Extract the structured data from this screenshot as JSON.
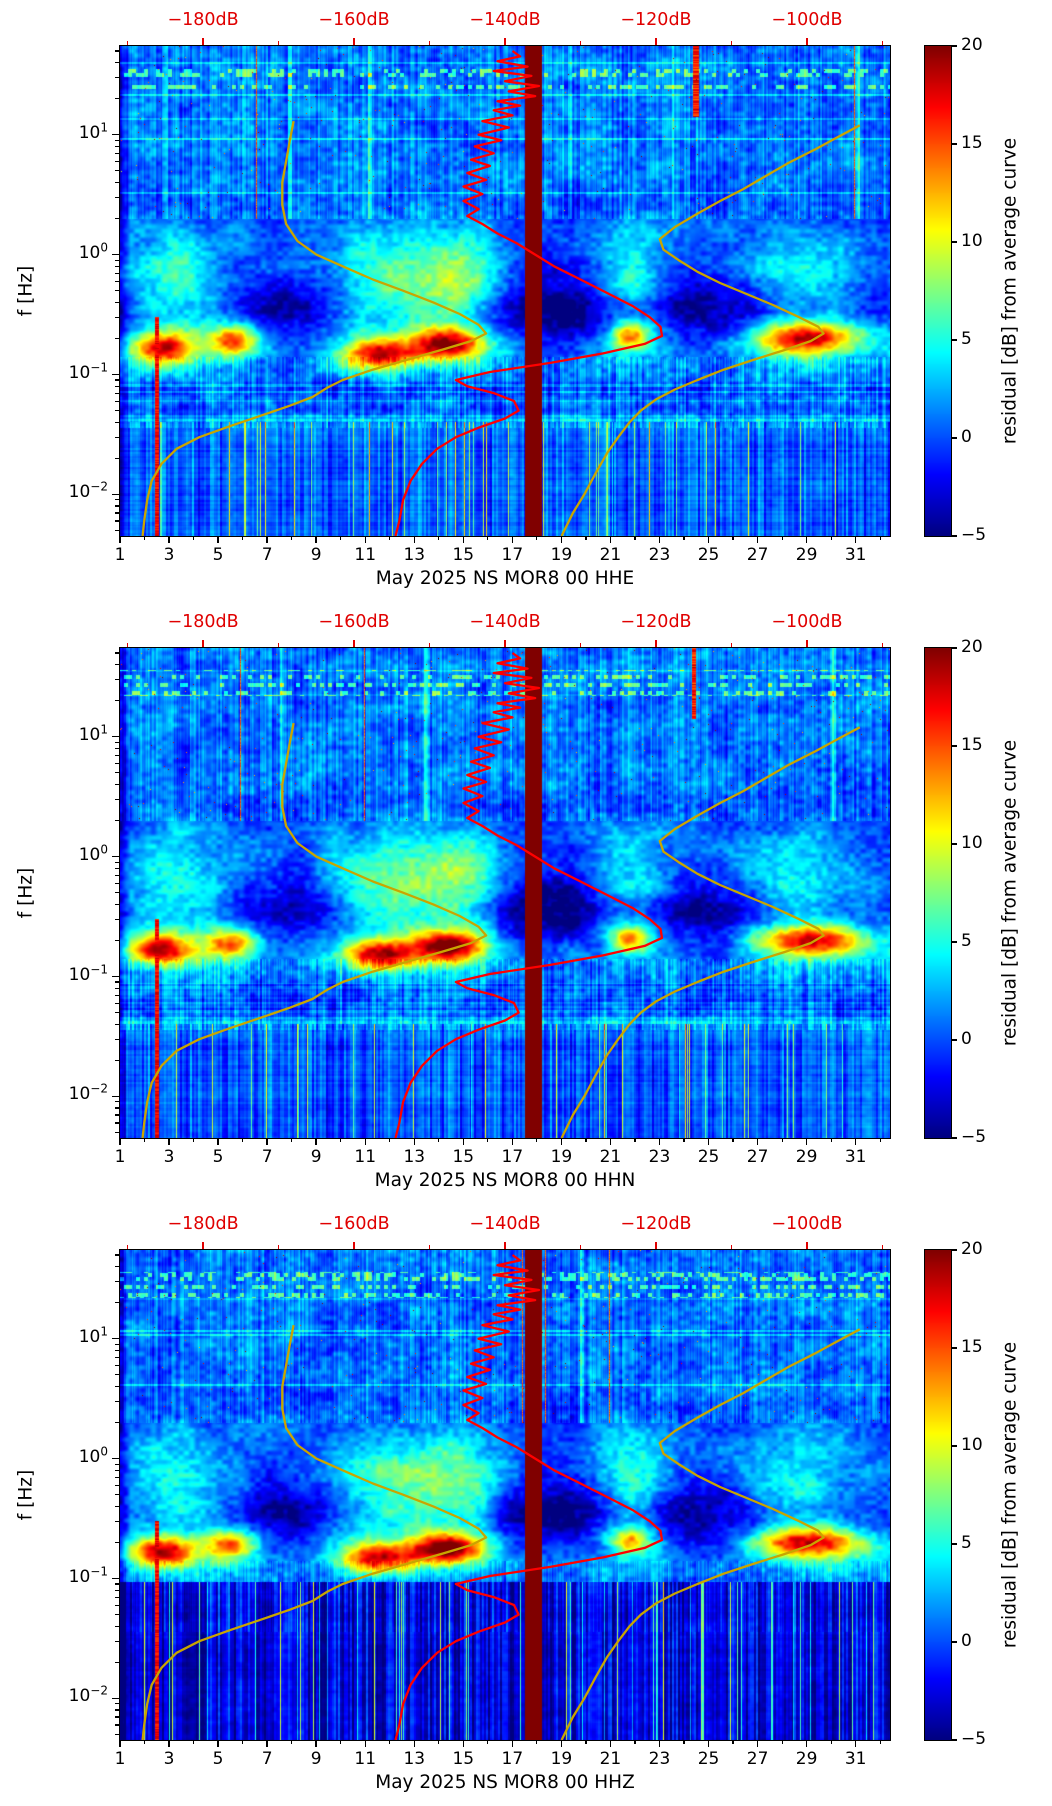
{
  "page": {
    "background": "#ffffff"
  },
  "axes": {
    "ylabel": "f [Hz]",
    "y_scale": "log",
    "f_min_hz": 0.0045,
    "f_max_hz": 55,
    "y_tick_base": "10",
    "y_tick_exponents": [
      1,
      0,
      -1,
      -2
    ],
    "y_tick_exponent_labels": [
      "1",
      "0",
      "−1",
      "−2"
    ],
    "x_day_min": 1,
    "x_day_max": 32.4,
    "x_day_ticks": [
      1,
      3,
      5,
      7,
      9,
      11,
      13,
      15,
      17,
      19,
      21,
      23,
      25,
      27,
      29,
      31
    ],
    "top_axis": {
      "color": "#e00000",
      "tick_labels": [
        "−180dB",
        "−160dB",
        "−140dB",
        "−120dB",
        "−100dB"
      ],
      "tick_values": [
        -180,
        -160,
        -140,
        -120,
        -100
      ],
      "minor_step_db": 10,
      "db_min": -191,
      "db_max": -89
    }
  },
  "colorbar": {
    "label": "residual [dB] from average curve",
    "vmin": -5,
    "vmax": 20,
    "ticks": [
      20,
      15,
      10,
      5,
      0,
      -5
    ],
    "tick_labels": [
      "20",
      "15",
      "10",
      "5",
      "0",
      "−5"
    ],
    "colormap": "jet"
  },
  "chart_common": {
    "curves": {
      "yellow_low_reference_curve": {
        "color": "#c9a500",
        "points_hz_db": [
          [
            13,
            -168
          ],
          [
            9,
            -168.5
          ],
          [
            6,
            -169
          ],
          [
            4,
            -169.5
          ],
          [
            2.6,
            -169.5
          ],
          [
            1.8,
            -169
          ],
          [
            1.3,
            -167.5
          ],
          [
            1.0,
            -165
          ],
          [
            0.8,
            -161.5
          ],
          [
            0.62,
            -157.5
          ],
          [
            0.5,
            -153.5
          ],
          [
            0.4,
            -149.5
          ],
          [
            0.32,
            -146
          ],
          [
            0.26,
            -143.5
          ],
          [
            0.22,
            -142.5
          ],
          [
            0.19,
            -144.5
          ],
          [
            0.16,
            -148.5
          ],
          [
            0.13,
            -153.5
          ],
          [
            0.11,
            -157.5
          ],
          [
            0.09,
            -161.5
          ],
          [
            0.078,
            -163.5
          ],
          [
            0.065,
            -165.5
          ],
          [
            0.055,
            -168.5
          ],
          [
            0.045,
            -172.5
          ],
          [
            0.037,
            -176.5
          ],
          [
            0.03,
            -180.5
          ],
          [
            0.024,
            -183.5
          ],
          [
            0.018,
            -185.5
          ],
          [
            0.013,
            -186.8
          ],
          [
            0.009,
            -187.4
          ],
          [
            0.006,
            -187.8
          ],
          [
            0.0045,
            -188
          ]
        ]
      },
      "yellow_high_reference_curve": {
        "color": "#c9a500",
        "points_hz_db": [
          [
            12,
            -93
          ],
          [
            9.5,
            -96
          ],
          [
            7.5,
            -99
          ],
          [
            5.8,
            -102.5
          ],
          [
            4.5,
            -105.5
          ],
          [
            3.5,
            -108.5
          ],
          [
            2.8,
            -111.5
          ],
          [
            2.2,
            -114.5
          ],
          [
            1.7,
            -117.5
          ],
          [
            1.35,
            -119.5
          ],
          [
            1.1,
            -119
          ],
          [
            0.9,
            -117
          ],
          [
            0.72,
            -114.5
          ],
          [
            0.58,
            -111.5
          ],
          [
            0.47,
            -108
          ],
          [
            0.38,
            -104.5
          ],
          [
            0.3,
            -101
          ],
          [
            0.25,
            -98.5
          ],
          [
            0.22,
            -97.8
          ],
          [
            0.19,
            -99.5
          ],
          [
            0.16,
            -103
          ],
          [
            0.13,
            -107.5
          ],
          [
            0.11,
            -111
          ],
          [
            0.09,
            -114.5
          ],
          [
            0.075,
            -117.5
          ],
          [
            0.062,
            -120
          ],
          [
            0.05,
            -122
          ],
          [
            0.04,
            -123.5
          ],
          [
            0.03,
            -125
          ],
          [
            0.022,
            -126.5
          ],
          [
            0.015,
            -128
          ],
          [
            0.01,
            -129.5
          ],
          [
            0.007,
            -131
          ],
          [
            0.0045,
            -132.5
          ]
        ]
      },
      "red_psd_curve": {
        "color": "#ff0000",
        "points_hz_db": [
          [
            50,
            -139
          ],
          [
            45,
            -138
          ],
          [
            41,
            -141
          ],
          [
            37,
            -137
          ],
          [
            34,
            -141.5
          ],
          [
            31,
            -136.5
          ],
          [
            28,
            -140
          ],
          [
            25.5,
            -135.5
          ],
          [
            23,
            -139.5
          ],
          [
            21,
            -136
          ],
          [
            19,
            -141
          ],
          [
            17.5,
            -138
          ],
          [
            16,
            -141.5
          ],
          [
            14.5,
            -139
          ],
          [
            13,
            -143
          ],
          [
            11.5,
            -139.5
          ],
          [
            10,
            -143.5
          ],
          [
            9,
            -140.5
          ],
          [
            8,
            -144
          ],
          [
            7,
            -141.5
          ],
          [
            6.2,
            -144.5
          ],
          [
            5.5,
            -142
          ],
          [
            4.8,
            -145
          ],
          [
            4.2,
            -142.5
          ],
          [
            3.7,
            -145.5
          ],
          [
            3.2,
            -143
          ],
          [
            2.8,
            -145.5
          ],
          [
            2.4,
            -143.5
          ],
          [
            2.1,
            -145
          ],
          [
            1.8,
            -143
          ],
          [
            1.5,
            -141
          ],
          [
            1.25,
            -138.5
          ],
          [
            1.0,
            -136
          ],
          [
            0.8,
            -133.5
          ],
          [
            0.62,
            -130
          ],
          [
            0.48,
            -126.5
          ],
          [
            0.37,
            -123
          ],
          [
            0.3,
            -120.8
          ],
          [
            0.25,
            -119.4
          ],
          [
            0.21,
            -119.2
          ],
          [
            0.18,
            -121.5
          ],
          [
            0.15,
            -127
          ],
          [
            0.125,
            -134
          ],
          [
            0.105,
            -142
          ],
          [
            0.09,
            -146.5
          ],
          [
            0.08,
            -145
          ],
          [
            0.07,
            -141.5
          ],
          [
            0.06,
            -138.8
          ],
          [
            0.05,
            -138.2
          ],
          [
            0.043,
            -140
          ],
          [
            0.036,
            -143.5
          ],
          [
            0.03,
            -146.5
          ],
          [
            0.024,
            -149
          ],
          [
            0.018,
            -151
          ],
          [
            0.013,
            -152.5
          ],
          [
            0.009,
            -153.5
          ],
          [
            0.006,
            -154
          ],
          [
            0.0045,
            -154.5
          ]
        ]
      }
    },
    "texture": {
      "microseism_hotspots": {
        "columns": [
          "day_center",
          "day_sigma",
          "log10f_center",
          "log10f_sigma",
          "amp_db"
        ],
        "rows": [
          [
            2.8,
            0.9,
            -0.78,
            0.09,
            15
          ],
          [
            5.6,
            0.7,
            -0.72,
            0.09,
            13
          ],
          [
            11.6,
            1.1,
            -0.83,
            0.09,
            15
          ],
          [
            14.4,
            1.0,
            -0.75,
            0.09,
            16
          ],
          [
            21.8,
            0.55,
            -0.68,
            0.08,
            11
          ],
          [
            29.0,
            1.5,
            -0.7,
            0.09,
            15
          ]
        ]
      },
      "storm_bands": {
        "columns": [
          "day_center",
          "day_sigma",
          "amp_db"
        ],
        "log10f_center": -0.25,
        "log10f_sigma": 0.33,
        "rows": [
          [
            3.3,
            1.4,
            5.5
          ],
          [
            12.0,
            2.0,
            6.5
          ],
          [
            15.0,
            1.3,
            6.0
          ],
          [
            21.9,
            1.0,
            5.5
          ],
          [
            28.5,
            1.8,
            4.5
          ]
        ]
      },
      "quiet_patches": {
        "columns": [
          "day_center",
          "day_sigma",
          "log10f_center",
          "log10f_sigma",
          "amp_db"
        ],
        "rows": [
          [
            8.3,
            1.6,
            -0.5,
            0.28,
            -4
          ],
          [
            18.6,
            1.9,
            -0.5,
            0.3,
            -5
          ],
          [
            25.2,
            1.9,
            -0.55,
            0.3,
            -4.5
          ]
        ]
      },
      "data_gap_day_range": [
        17.52,
        18.22
      ],
      "hot_red_column_day": 2.52
    }
  },
  "chart_data": [
    {
      "type": "heatmap",
      "title": "May 2025 NS MOR8 00 HHE",
      "x_unit": "day of May 2025",
      "y_unit": "Hz",
      "value_unit": "residual dB from average curve",
      "value_range": [
        -5,
        20
      ],
      "x_range_days": [
        1,
        32.4
      ],
      "f_range_hz": [
        0.0045,
        55
      ],
      "overlay_curves_ref": "chart_common.curves",
      "style": {
        "seed": 11,
        "low_base": 0.2,
        "low_top_log10f": -1.4,
        "low_stripe": 3.2,
        "low_bright_th": 0.958,
        "lowline": 3.5,
        "mid_stripe": 3.0,
        "low_row_stripe": 2.5,
        "top_red_streaks": [
          [
            24.5,
            0.12
          ]
        ]
      }
    },
    {
      "type": "heatmap",
      "title": "May 2025 NS MOR8 00 HHN",
      "x_unit": "day of May 2025",
      "y_unit": "Hz",
      "value_unit": "residual dB from average curve",
      "value_range": [
        -5,
        20
      ],
      "x_range_days": [
        1,
        32.4
      ],
      "f_range_hz": [
        0.0045,
        55
      ],
      "overlay_curves_ref": "chart_common.curves",
      "style": {
        "seed": 23,
        "low_base": 0.0,
        "low_top_log10f": -1.4,
        "low_stripe": 3.2,
        "low_bright_th": 0.958,
        "lowline": 3.2,
        "mid_stripe": 3.0,
        "low_row_stripe": 2.5,
        "top_red_streaks": [
          [
            24.4,
            0.09
          ]
        ]
      }
    },
    {
      "type": "heatmap",
      "title": "May 2025 NS MOR8 00 HHZ",
      "x_unit": "day of May 2025",
      "y_unit": "Hz",
      "value_unit": "residual dB from average curve",
      "value_range": [
        -5,
        20
      ],
      "x_range_days": [
        1,
        32.4
      ],
      "f_range_hz": [
        0.0045,
        55
      ],
      "overlay_curves_ref": "chart_common.curves",
      "style": {
        "seed": 37,
        "low_base": -2.8,
        "low_top_log10f": -1.03,
        "low_stripe": 4.2,
        "low_bright_th": 0.945,
        "lowline": 1.4,
        "mid_stripe": 1.8,
        "low_row_stripe": 0.8,
        "top_red_streaks": []
      }
    }
  ]
}
